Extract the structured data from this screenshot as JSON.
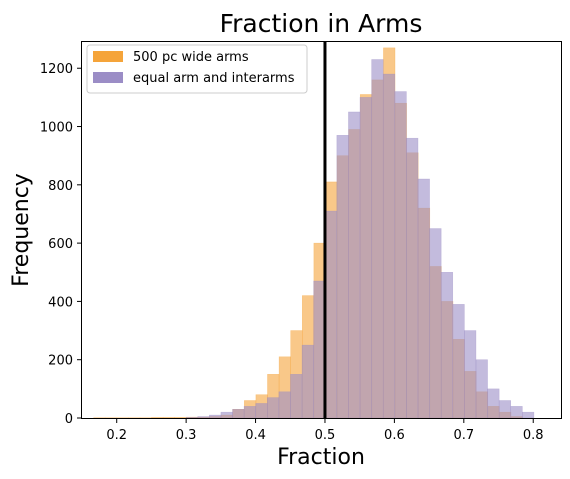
{
  "chart_data": {
    "type": "histogram",
    "title": "Fraction in Arms",
    "xlabel": "Fraction",
    "ylabel": "Frequency",
    "xlim": [
      0.15,
      0.84
    ],
    "ylim": [
      0,
      1290
    ],
    "xticks": [
      "0.2",
      "0.3",
      "0.4",
      "0.5",
      "0.6",
      "0.7",
      "0.8"
    ],
    "yticks": [
      "0",
      "200",
      "400",
      "600",
      "800",
      "1000",
      "1200"
    ],
    "legend_position": "top-left",
    "vline_x": 0.5,
    "series": [
      {
        "name": "500 pc wide arms",
        "color": "#f5a43a",
        "bin_left": 0.1667,
        "bin_width": 0.0167,
        "counts": [
          1,
          1,
          1,
          1,
          1,
          2,
          2,
          2,
          3,
          3,
          5,
          10,
          30,
          60,
          80,
          150,
          210,
          300,
          420,
          600,
          810,
          900,
          990,
          1110,
          1160,
          1270,
          1080,
          910,
          720,
          520,
          400,
          270,
          160,
          90,
          40,
          20,
          5
        ]
      },
      {
        "name": "equal arm and interarms",
        "color": "#9b8dc6",
        "bin_left": 0.3,
        "bin_width": 0.0167,
        "counts": [
          2,
          5,
          10,
          20,
          30,
          40,
          50,
          70,
          90,
          150,
          250,
          470,
          710,
          970,
          1050,
          1100,
          1230,
          1180,
          1120,
          960,
          820,
          650,
          500,
          390,
          300,
          200,
          100,
          60,
          40,
          20
        ]
      }
    ]
  }
}
